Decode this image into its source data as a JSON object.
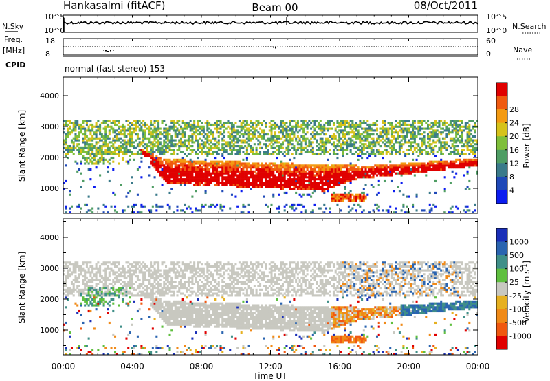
{
  "header": {
    "station": "Hankasalmi (fitACF)",
    "beam": "Beam 00",
    "date": "08/Oct/2011"
  },
  "noise_panel": {
    "left_label": "N.Sky",
    "ticks": [
      "10^5",
      "10^0"
    ],
    "right_label": "N.Search"
  },
  "freq_panel": {
    "label_line1": "Freq.",
    "label_line2": "[MHz]",
    "left_ticks": [
      "18",
      "8"
    ],
    "right_ticks": [
      "60",
      "0"
    ],
    "right_label": "Nave"
  },
  "cpid_panel": {
    "label": "CPID",
    "text": "normal (fast stereo) 153"
  },
  "chart_data": [
    {
      "type": "heatmap",
      "name": "Power",
      "xlabel": "",
      "ylabel": "Slant Range [km]",
      "yticks": [
        "1000",
        "2000",
        "3000",
        "4000"
      ],
      "ylim": [
        200,
        4600
      ],
      "colorbar": {
        "label": "Power [dB]",
        "ticks": [
          "4",
          "8",
          "12",
          "16",
          "20",
          "24",
          "28"
        ],
        "colors": [
          "#0b1cf0",
          "#1f49b8",
          "#3a7a8a",
          "#4f9d64",
          "#7fbf3a",
          "#d6c21a",
          "#f39a12",
          "#f05a10",
          "#e00000"
        ]
      }
    },
    {
      "type": "heatmap",
      "name": "Velocity",
      "xlabel": "Time UT",
      "ylabel": "Slant Range [km]",
      "yticks": [
        "1000",
        "2000",
        "3000",
        "4000"
      ],
      "ylim": [
        200,
        4600
      ],
      "xticks": [
        "00:00",
        "04:00",
        "08:00",
        "12:00",
        "16:00",
        "20:00",
        "00:00"
      ],
      "colorbar": {
        "label": "Velocity [m s^-1]",
        "ticks": [
          "1000",
          "500",
          "100",
          "25",
          "-25",
          "-100",
          "-500",
          "-1000"
        ],
        "colors": [
          "#1a2fb8",
          "#2a64b0",
          "#3f8f88",
          "#5fbf3f",
          "#c8c8c0",
          "#e6b020",
          "#f08a18",
          "#f05810",
          "#e00000"
        ]
      }
    }
  ]
}
